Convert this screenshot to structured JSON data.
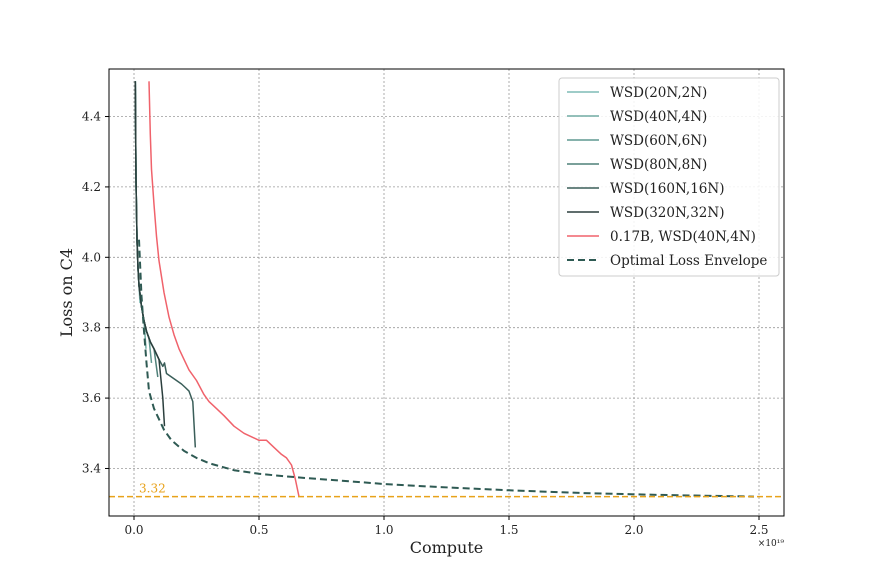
{
  "chart_data": {
    "type": "line",
    "xlabel": "Compute",
    "ylabel": "Loss on C4",
    "x_scale_label": "×10¹⁹",
    "xlim": [
      -0.1,
      2.6
    ],
    "ylim": [
      3.265,
      4.535
    ],
    "xticks": [
      0.0,
      0.5,
      1.0,
      1.5,
      2.0,
      2.5
    ],
    "xtick_labels": [
      "0.0",
      "0.5",
      "1.0",
      "1.5",
      "2.0",
      "2.5"
    ],
    "yticks": [
      3.4,
      3.6,
      3.8,
      4.0,
      4.2,
      4.4
    ],
    "ytick_labels": [
      "3.4",
      "3.6",
      "3.8",
      "4.0",
      "4.2",
      "4.4"
    ],
    "grid": true,
    "legend_position": "top-right",
    "reference_line": {
      "y": 3.32,
      "label": "3.32",
      "color": "#e8a21a"
    },
    "series": [
      {
        "name": "WSD(20N,2N)",
        "color": "#7fbcb6",
        "style": "solid",
        "x": [
          0.005,
          0.008,
          0.012,
          0.016,
          0.02,
          0.024
        ],
        "y": [
          4.5,
          4.22,
          4.05,
          3.97,
          3.92,
          3.87
        ]
      },
      {
        "name": "WSD(40N,4N)",
        "color": "#70aca4",
        "style": "solid",
        "x": [
          0.005,
          0.008,
          0.012,
          0.016,
          0.02,
          0.03,
          0.04,
          0.048
        ],
        "y": [
          4.5,
          4.22,
          4.05,
          3.97,
          3.92,
          3.86,
          3.82,
          3.74
        ]
      },
      {
        "name": "WSD(60N,6N)",
        "color": "#5f9990",
        "style": "solid",
        "x": [
          0.005,
          0.008,
          0.012,
          0.016,
          0.02,
          0.03,
          0.04,
          0.05,
          0.06,
          0.07
        ],
        "y": [
          4.5,
          4.22,
          4.05,
          3.97,
          3.92,
          3.86,
          3.82,
          3.79,
          3.77,
          3.7
        ]
      },
      {
        "name": "WSD(80N,8N)",
        "color": "#4f8079",
        "style": "solid",
        "x": [
          0.005,
          0.008,
          0.012,
          0.016,
          0.02,
          0.03,
          0.04,
          0.05,
          0.065,
          0.08,
          0.095
        ],
        "y": [
          4.5,
          4.22,
          4.05,
          3.97,
          3.92,
          3.86,
          3.82,
          3.79,
          3.76,
          3.74,
          3.66
        ]
      },
      {
        "name": "WSD(160N,16N)",
        "color": "#3a5e59",
        "style": "solid",
        "x": [
          0.005,
          0.008,
          0.012,
          0.016,
          0.02,
          0.03,
          0.04,
          0.05,
          0.065,
          0.08,
          0.1,
          0.115,
          0.122,
          0.13,
          0.15,
          0.17,
          0.19,
          0.205,
          0.22,
          0.235,
          0.245
        ],
        "y": [
          4.5,
          4.22,
          4.05,
          3.97,
          3.92,
          3.86,
          3.82,
          3.79,
          3.76,
          3.74,
          3.71,
          3.69,
          3.7,
          3.67,
          3.66,
          3.65,
          3.64,
          3.63,
          3.62,
          3.59,
          3.46
        ]
      },
      {
        "name": "WSD(320N,32N)",
        "color": "#2b3f3d",
        "style": "solid",
        "x": [
          0.005,
          0.008,
          0.012,
          0.016,
          0.02,
          0.03,
          0.04,
          0.05,
          0.065,
          0.08,
          0.1,
          0.115,
          0.122
        ],
        "y": [
          4.5,
          4.22,
          4.05,
          3.97,
          3.92,
          3.86,
          3.82,
          3.79,
          3.76,
          3.74,
          3.71,
          3.6,
          3.52
        ]
      },
      {
        "name": "0.17B, WSD(40N,4N)",
        "color": "#f0626b",
        "style": "solid",
        "x": [
          0.06,
          0.065,
          0.07,
          0.08,
          0.09,
          0.1,
          0.12,
          0.14,
          0.16,
          0.18,
          0.2,
          0.22,
          0.25,
          0.28,
          0.3,
          0.33,
          0.36,
          0.4,
          0.44,
          0.47,
          0.5,
          0.53,
          0.56,
          0.59,
          0.61,
          0.63,
          0.645,
          0.66
        ],
        "y": [
          4.5,
          4.35,
          4.25,
          4.15,
          4.06,
          3.99,
          3.9,
          3.83,
          3.78,
          3.74,
          3.71,
          3.68,
          3.65,
          3.61,
          3.59,
          3.57,
          3.55,
          3.52,
          3.5,
          3.49,
          3.48,
          3.48,
          3.46,
          3.44,
          3.43,
          3.41,
          3.37,
          3.32
        ]
      },
      {
        "name": "Optimal Loss Envelope",
        "color": "#2e5a53",
        "style": "dashed",
        "x": [
          0.02,
          0.03,
          0.04,
          0.05,
          0.06,
          0.08,
          0.1,
          0.12,
          0.15,
          0.2,
          0.25,
          0.3,
          0.4,
          0.5,
          0.6,
          0.7,
          0.8,
          1.0,
          1.2,
          1.5,
          1.8,
          2.1,
          2.48
        ],
        "y": [
          4.05,
          3.89,
          3.79,
          3.7,
          3.62,
          3.57,
          3.54,
          3.51,
          3.48,
          3.45,
          3.43,
          3.415,
          3.395,
          3.385,
          3.378,
          3.372,
          3.367,
          3.356,
          3.348,
          3.338,
          3.33,
          3.325,
          3.32
        ]
      }
    ]
  }
}
